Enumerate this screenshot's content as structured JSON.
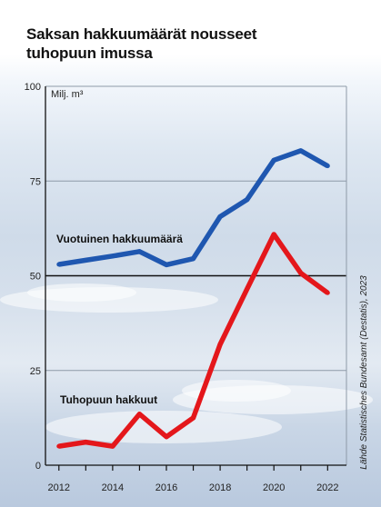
{
  "title_lines": [
    "Saksan hakkuumäärät nousseet",
    "tuhopuun imussa"
  ],
  "chart_data": {
    "type": "line",
    "title": "Saksan hakkuumäärät nousseet tuhopuun imussa",
    "ylabel": "Milj. m³",
    "xlabel": "",
    "ylim": [
      0,
      100
    ],
    "yticks": [
      0,
      25,
      50,
      75,
      100
    ],
    "xticks": [
      2012,
      2014,
      2016,
      2018,
      2020,
      2022
    ],
    "x": [
      2012,
      2013,
      2014,
      2015,
      2016,
      2017,
      2018,
      2019,
      2020,
      2021,
      2022
    ],
    "grid": true,
    "series": [
      {
        "name": "Vuotuinen hakkuumäärä",
        "color": "#1f57b0",
        "values": [
          53,
          54.1,
          55.2,
          56.4,
          52.9,
          54.5,
          65.6,
          70.1,
          80.5,
          83,
          79
        ]
      },
      {
        "name": "Tuhopuun hakkuut",
        "color": "#e4171b",
        "values": [
          5,
          6.1,
          5,
          13.5,
          7.5,
          12.5,
          31.9,
          46.5,
          60.9,
          50.7,
          45.5
        ]
      }
    ],
    "reference_line": 50,
    "source": "Lähde Statistisches Bundesamt (Destatis), 2023"
  }
}
